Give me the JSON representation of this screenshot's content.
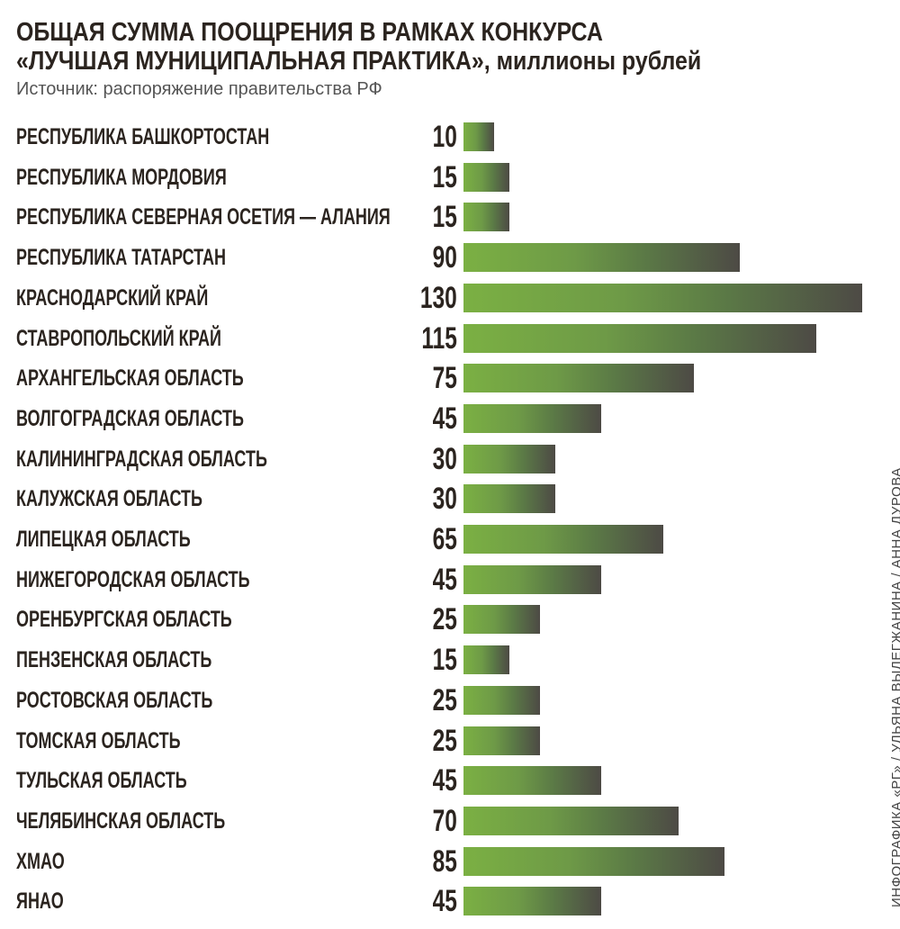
{
  "title_line1": "ОБЩАЯ СУММА ПООЩРЕНИЯ В РАМКАХ КОНКУРСА",
  "title_line2": "«ЛУЧШАЯ МУНИЦИПАЛЬНАЯ ПРАКТИКА»,",
  "title_unit": " миллионы рублей",
  "source": "Источник: распоряжение правительства РФ",
  "credit": "ИНФОГРАФИКА «РГ» / УЛЬЯНА ВЫЛЕГЖАНИНА / АННА ДУРОВА",
  "colors": {
    "bar_start": "#7bb043",
    "bar_end": "#4d4a45",
    "text": "#2b241f"
  },
  "chart_data": {
    "type": "bar",
    "orientation": "horizontal",
    "title": "ОБЩАЯ СУММА ПООЩРЕНИЯ В РАМКАХ КОНКУРСА «ЛУЧШАЯ МУНИЦИПАЛЬНАЯ ПРАКТИКА», миллионы рублей",
    "xlabel": "",
    "ylabel": "",
    "xlim": [
      0,
      130
    ],
    "grid": false,
    "categories": [
      "РЕСПУБЛИКА БАШКОРТОСТАН",
      "РЕСПУБЛИКА МОРДОВИЯ",
      "РЕСПУБЛИКА СЕВЕРНАЯ ОСЕТИЯ — АЛАНИЯ",
      "РЕСПУБЛИКА ТАТАРСТАН",
      "КРАСНОДАРСКИЙ КРАЙ",
      "СТАВРОПОЛЬСКИЙ КРАЙ",
      "АРХАНГЕЛЬСКАЯ ОБЛАСТЬ",
      "ВОЛГОГРАДСКАЯ ОБЛАСТЬ",
      "КАЛИНИНГРАДСКАЯ ОБЛАСТЬ",
      "КАЛУЖСКАЯ ОБЛАСТЬ",
      "ЛИПЕЦКАЯ ОБЛАСТЬ",
      "НИЖЕГОРОДСКАЯ ОБЛАСТЬ",
      "ОРЕНБУРГСКАЯ ОБЛАСТЬ",
      "ПЕНЗЕНСКАЯ ОБЛАСТЬ",
      "РОСТОВСКАЯ ОБЛАСТЬ",
      "ТОМСКАЯ ОБЛАСТЬ",
      "ТУЛЬСКАЯ ОБЛАСТЬ",
      "ЧЕЛЯБИНСКАЯ ОБЛАСТЬ",
      "ХМАО",
      "ЯНАО"
    ],
    "values": [
      10,
      15,
      15,
      90,
      130,
      115,
      75,
      45,
      30,
      30,
      65,
      45,
      25,
      15,
      25,
      25,
      45,
      70,
      85,
      45
    ]
  }
}
